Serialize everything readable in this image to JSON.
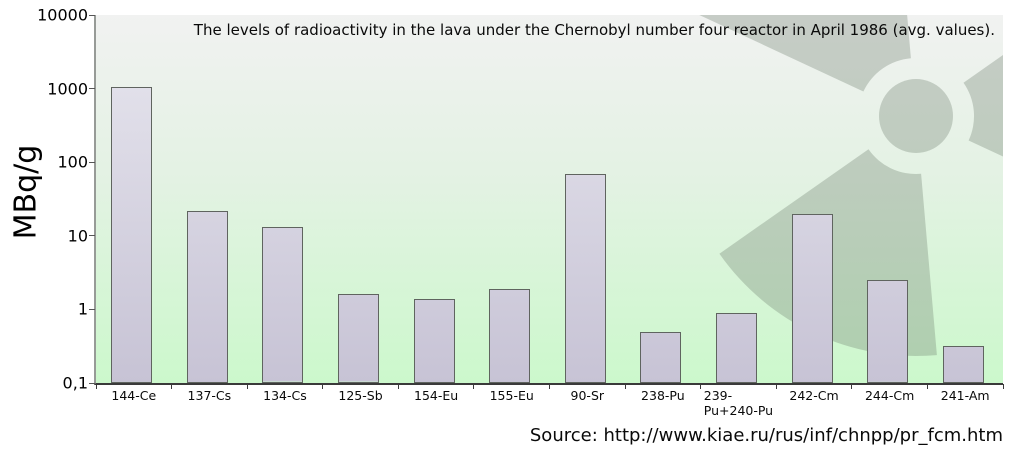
{
  "source": "Source: http://www.kiae.ru/rus/inf/chnpp/pr_fcm.htm",
  "chart_data": {
    "type": "bar",
    "title": "The levels of radioactivity in the lava under the Chernobyl number four reactor in April 1986 (avg. values).",
    "xlabel": "",
    "ylabel": "MBq/g",
    "yscale": "log",
    "ylim": [
      0.1,
      10000
    ],
    "grid": false,
    "legend": false,
    "yticks": [
      {
        "value": 10000,
        "label": "10000"
      },
      {
        "value": 1000,
        "label": "1000"
      },
      {
        "value": 100,
        "label": "100"
      },
      {
        "value": 10,
        "label": "10"
      },
      {
        "value": 1,
        "label": "1"
      },
      {
        "value": 0.1,
        "label": "0,1"
      }
    ],
    "categories": [
      "144-Ce",
      "137-Cs",
      "134-Cs",
      "125-Sb",
      "154-Eu",
      "155-Eu",
      "90-Sr",
      "238-Pu",
      "239-\nPu+240-Pu",
      "242-Cm",
      "244-Cm",
      "241-Am"
    ],
    "values": [
      1050,
      22,
      13,
      1.6,
      1.4,
      1.9,
      70,
      0.5,
      0.9,
      20,
      2.5,
      0.32
    ],
    "colors": {
      "bar_fill_top": "#e8e7ef",
      "bar_fill_bottom": "#c7c3d5",
      "bar_border": "#5f645f",
      "plot_bg_top": "#f1f2f1",
      "plot_bg_bottom": "#ccf8cc",
      "watermark": "#6e7d6e",
      "axis": "#3a3a3a"
    },
    "watermark_icon": "radiation-trefoil-icon"
  }
}
